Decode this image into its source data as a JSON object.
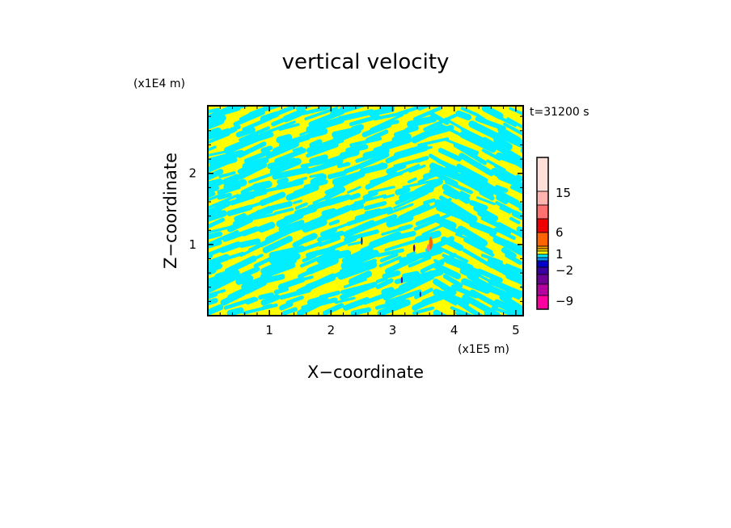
{
  "chart_data": {
    "type": "heatmap",
    "title": "vertical velocity",
    "xlabel": "X−coordinate",
    "ylabel": "Z−coordinate",
    "x_unit": "(x1E5 m)",
    "y_unit": "(x1E4 m)",
    "annotation": "t=31200 s",
    "xlim": [
      0,
      5.12
    ],
    "ylim": [
      0,
      2.95
    ],
    "x_ticks": [
      "1",
      "2",
      "3",
      "4",
      "5"
    ],
    "y_ticks": [
      "1",
      "2"
    ],
    "dominant_colors": [
      "#ffff00",
      "#00eeff"
    ],
    "colorbar": {
      "tick_labels": [
        "15",
        "6",
        "1",
        "−2",
        "−9"
      ],
      "colors": [
        "#ffe0d8",
        "#ffb4b0",
        "#ff7070",
        "#f00000",
        "#ff6400",
        "#ffa000",
        "#ffd000",
        "#ffff00",
        "#00eeff",
        "#0096ff",
        "#0000c8",
        "#3c00a0",
        "#6e0096",
        "#b4009e",
        "#ff00a0"
      ]
    }
  }
}
